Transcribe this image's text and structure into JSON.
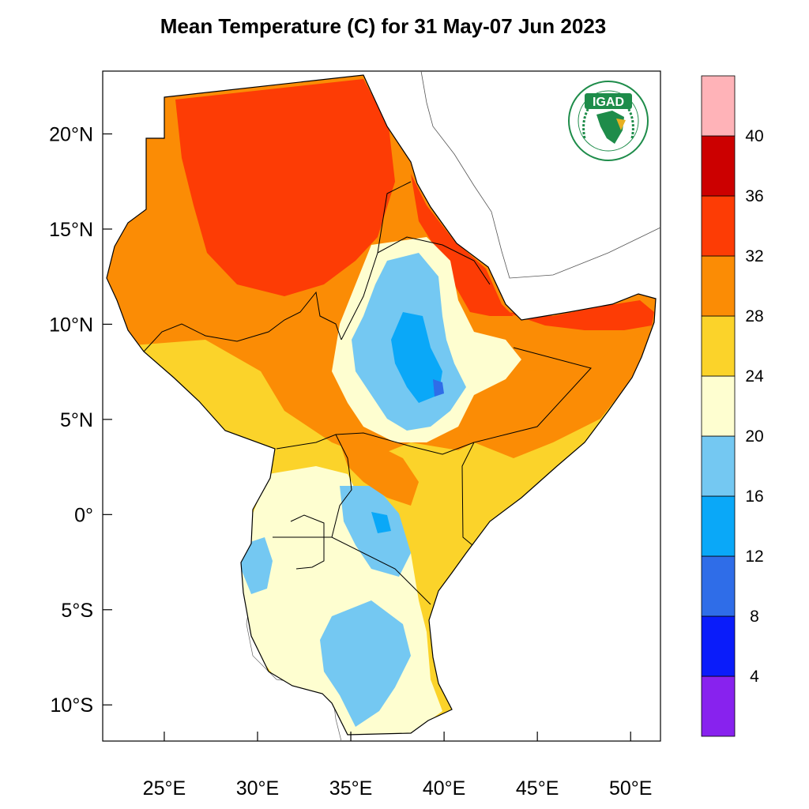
{
  "title": "Mean Temperature (C) for 31 May-07 Jun 2023",
  "logo": {
    "text": "IGAD"
  },
  "axes": {
    "x_ticks": [
      {
        "lon": 25,
        "label": "25°E"
      },
      {
        "lon": 30,
        "label": "30°E"
      },
      {
        "lon": 35,
        "label": "35°E"
      },
      {
        "lon": 40,
        "label": "40°E"
      },
      {
        "lon": 45,
        "label": "45°E"
      },
      {
        "lon": 50,
        "label": "50°E"
      }
    ],
    "y_ticks": [
      {
        "lat": 20,
        "label": "20°N"
      },
      {
        "lat": 15,
        "label": "15°N"
      },
      {
        "lat": 10,
        "label": "10°N"
      },
      {
        "lat": 5,
        "label": "5°N"
      },
      {
        "lat": 0,
        "label": "0°"
      },
      {
        "lat": -5,
        "label": "5°S"
      },
      {
        "lat": -10,
        "label": "10°S"
      }
    ],
    "lon_range": [
      21.7,
      51.6
    ],
    "lat_range": [
      -11.9,
      23.3
    ]
  },
  "colorbar": {
    "colors": [
      "#8822ee",
      "#0a1cfa",
      "#2f6de8",
      "#0aa8f8",
      "#74c8f2",
      "#fefed0",
      "#fbd32a",
      "#fb8c05",
      "#fd3c05",
      "#cc0000",
      "#ffb3b8"
    ],
    "labels": [
      "4",
      "8",
      "12",
      "16",
      "20",
      "24",
      "28",
      "32",
      "36",
      "40"
    ]
  },
  "colors": {
    "hot": "#fd3c05",
    "warm": "#fb8c05",
    "mild": "#fbd32a",
    "cool": "#fefed0",
    "cold": "#74c8f2",
    "colder": "#0aa8f8",
    "coldest": "#2f6de8",
    "logo_green": "#1e8c4a"
  }
}
